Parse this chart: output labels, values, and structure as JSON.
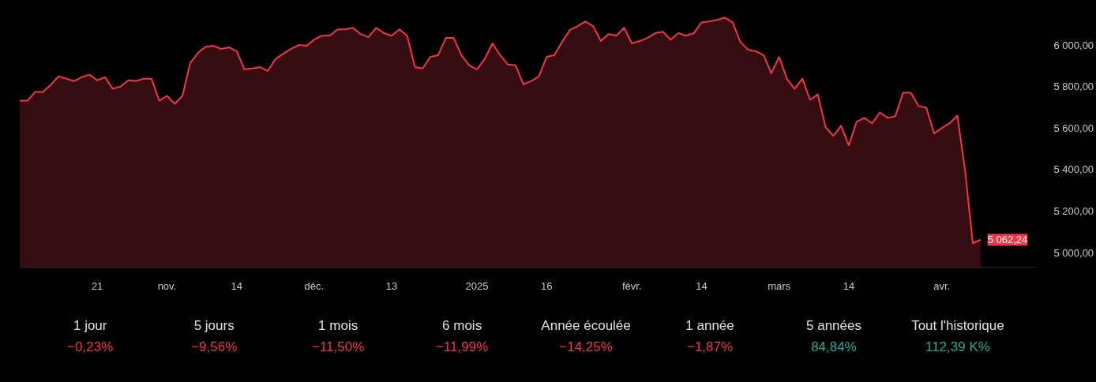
{
  "chart_data": {
    "type": "area",
    "categories": [
      null,
      null,
      null,
      null,
      null,
      null,
      null,
      null,
      null,
      null,
      "21",
      null,
      null,
      null,
      null,
      null,
      null,
      null,
      null,
      "nov.",
      null,
      null,
      null,
      null,
      null,
      null,
      null,
      null,
      "14",
      null,
      null,
      null,
      null,
      null,
      null,
      null,
      null,
      null,
      "déc.",
      null,
      null,
      null,
      null,
      null,
      null,
      null,
      null,
      null,
      "13",
      null,
      null,
      null,
      null,
      null,
      null,
      null,
      null,
      null,
      null,
      "2025",
      null,
      null,
      null,
      null,
      null,
      null,
      null,
      null,
      "16",
      null,
      null,
      null,
      null,
      null,
      null,
      null,
      null,
      null,
      null,
      "févr.",
      null,
      null,
      null,
      null,
      null,
      null,
      null,
      null,
      "14",
      null,
      null,
      null,
      null,
      null,
      null,
      null,
      null,
      null,
      "mars",
      null,
      null,
      null,
      null,
      null,
      null,
      null,
      null,
      "14",
      null,
      null,
      null,
      null,
      null,
      null,
      null,
      null,
      null,
      null,
      null,
      "avr.",
      null,
      null,
      null,
      null,
      null
    ],
    "series": [
      {
        "color": "#f23645",
        "values": [
          5732,
          5732,
          5774,
          5774,
          5808,
          5849,
          5838,
          5826,
          5845,
          5857,
          5830,
          5845,
          5789,
          5800,
          5830,
          5826,
          5838,
          5838,
          5732,
          5755,
          5717,
          5755,
          5913,
          5962,
          5992,
          5996,
          5981,
          5989,
          5970,
          5883,
          5887,
          5894,
          5875,
          5932,
          5958,
          5981,
          6000,
          5996,
          6026,
          6045,
          6045,
          6075,
          6075,
          6083,
          6053,
          6038,
          6083,
          6057,
          6045,
          6075,
          6045,
          5894,
          5887,
          5943,
          5951,
          6034,
          6034,
          5951,
          5902,
          5883,
          5932,
          6008,
          5951,
          5906,
          5902,
          5811,
          5826,
          5849,
          5943,
          5951,
          6015,
          6072,
          6091,
          6113,
          6091,
          6019,
          6053,
          6045,
          6083,
          6008,
          6019,
          6034,
          6057,
          6064,
          6026,
          6057,
          6045,
          6057,
          6109,
          6113,
          6121,
          6132,
          6109,
          6015,
          5977,
          5970,
          5951,
          5864,
          5943,
          5838,
          5789,
          5838,
          5736,
          5762,
          5604,
          5562,
          5611,
          5517,
          5630,
          5649,
          5623,
          5675,
          5649,
          5657,
          5770,
          5770,
          5706,
          5698,
          5574,
          5600,
          5623,
          5660,
          5396,
          5045,
          5062
        ]
      }
    ],
    "ylim": [
      4930,
      6215
    ],
    "yticks": [
      {
        "value": 5000,
        "label": "5 000,00"
      },
      {
        "value": 5200,
        "label": "5 200,00"
      },
      {
        "value": 5400,
        "label": "5 400,00"
      },
      {
        "value": 5600,
        "label": "5 600,00"
      },
      {
        "value": 5800,
        "label": "5 800,00"
      },
      {
        "value": 6000,
        "label": "6 000,00"
      }
    ],
    "annotations": [
      "5 062,24",
      "1 jour",
      "−0,23%",
      "5 jours",
      "−9,56%",
      "1 mois",
      "−11,50%",
      "6 mois",
      "−11,99%",
      "Année écoulée",
      "−14,25%",
      "1 année",
      "−1,87%",
      "5 années",
      "84,84%",
      "Tout l'historique",
      "112,39 K%"
    ],
    "grid": false
  }
}
